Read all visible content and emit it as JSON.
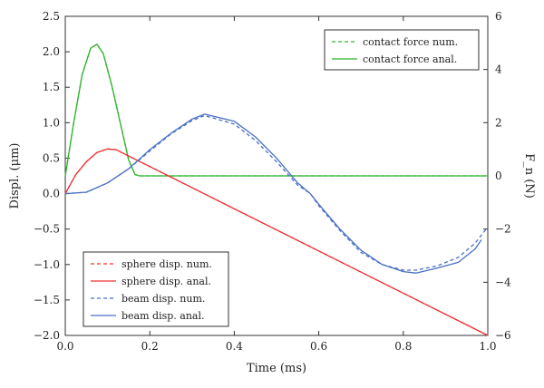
{
  "chart_data": {
    "type": "line",
    "xlabel": "Time (ms)",
    "ylabel": "Displ. (μm)",
    "y2label": "F_n (N)",
    "xlim": [
      0,
      1.0
    ],
    "ylim": [
      -2.0,
      2.5
    ],
    "y2lim": [
      -6,
      6
    ],
    "xticks": [
      "0.0",
      "0.2",
      "0.4",
      "0.6",
      "0.8",
      "1.0"
    ],
    "yticks": [
      "−2.0",
      "−1.5",
      "−1.0",
      "−0.5",
      "0.0",
      "0.5",
      "1.0",
      "1.5",
      "2.0",
      "2.5"
    ],
    "y2ticks": [
      "−6",
      "−4",
      "−2",
      "0",
      "2",
      "4",
      "6"
    ],
    "grid": false,
    "series": [
      {
        "name": "contact force num.",
        "axis": "right",
        "color": "#2db52d",
        "dash": true,
        "x": [
          0,
          0.02,
          0.04,
          0.06,
          0.075,
          0.09,
          0.11,
          0.13,
          0.15,
          0.165,
          0.175,
          1.0
        ],
        "y": [
          0,
          2.0,
          3.8,
          4.8,
          4.95,
          4.6,
          3.4,
          2.0,
          0.6,
          0.05,
          0,
          0
        ]
      },
      {
        "name": "contact force anal.",
        "axis": "right",
        "color": "#2db52d",
        "dash": false,
        "x": [
          0,
          0.02,
          0.04,
          0.06,
          0.075,
          0.09,
          0.11,
          0.13,
          0.15,
          0.165,
          0.175,
          1.0
        ],
        "y": [
          0,
          2.0,
          3.8,
          4.8,
          4.95,
          4.6,
          3.4,
          2.0,
          0.6,
          0.05,
          0,
          0
        ]
      },
      {
        "name": "sphere disp. num.",
        "axis": "left",
        "color": "#ee3333",
        "dash": true,
        "x": [
          0,
          0.025,
          0.05,
          0.075,
          0.1,
          0.12,
          1.0
        ],
        "y": [
          0,
          0.27,
          0.45,
          0.58,
          0.63,
          0.62,
          -2.0
        ]
      },
      {
        "name": "sphere disp. anal.",
        "axis": "left",
        "color": "#ee3333",
        "dash": false,
        "x": [
          0,
          0.025,
          0.05,
          0.075,
          0.1,
          0.12,
          1.0
        ],
        "y": [
          0,
          0.27,
          0.45,
          0.58,
          0.63,
          0.62,
          -2.0
        ]
      },
      {
        "name": "beam disp. num.",
        "axis": "left",
        "color": "#4a6fc4",
        "dash": true,
        "x": [
          0,
          0.05,
          0.1,
          0.15,
          0.2,
          0.25,
          0.3,
          0.33,
          0.4,
          0.45,
          0.5,
          0.55,
          0.58,
          0.6,
          0.65,
          0.7,
          0.75,
          0.8,
          0.83,
          0.88,
          0.93,
          0.97,
          1.0
        ],
        "y": [
          0,
          0.02,
          0.15,
          0.35,
          0.6,
          0.84,
          1.03,
          1.1,
          0.98,
          0.75,
          0.45,
          0.12,
          0,
          -0.17,
          -0.52,
          -0.83,
          -1.0,
          -1.08,
          -1.08,
          -1.02,
          -0.9,
          -0.7,
          -0.47
        ]
      },
      {
        "name": "beam disp. anal.",
        "axis": "left",
        "color": "#4a6fc4",
        "dash": false,
        "x": [
          0,
          0.05,
          0.1,
          0.15,
          0.2,
          0.25,
          0.3,
          0.33,
          0.4,
          0.45,
          0.5,
          0.55,
          0.58,
          0.6,
          0.65,
          0.7,
          0.75,
          0.8,
          0.83,
          0.88,
          0.93,
          0.97,
          0.985
        ],
        "y": [
          0,
          0.02,
          0.15,
          0.35,
          0.62,
          0.85,
          1.05,
          1.12,
          1.02,
          0.8,
          0.5,
          0.15,
          0,
          -0.15,
          -0.5,
          -0.8,
          -1.0,
          -1.1,
          -1.12,
          -1.05,
          -0.97,
          -0.78,
          -0.65
        ]
      }
    ],
    "legends": [
      {
        "placement": "top-right",
        "entries": [
          "contact force num.",
          "contact force anal."
        ]
      },
      {
        "placement": "bottom-left",
        "entries": [
          "sphere disp. num.",
          "sphere disp. anal.",
          "beam disp. num.",
          "beam disp. anal."
        ]
      }
    ]
  }
}
